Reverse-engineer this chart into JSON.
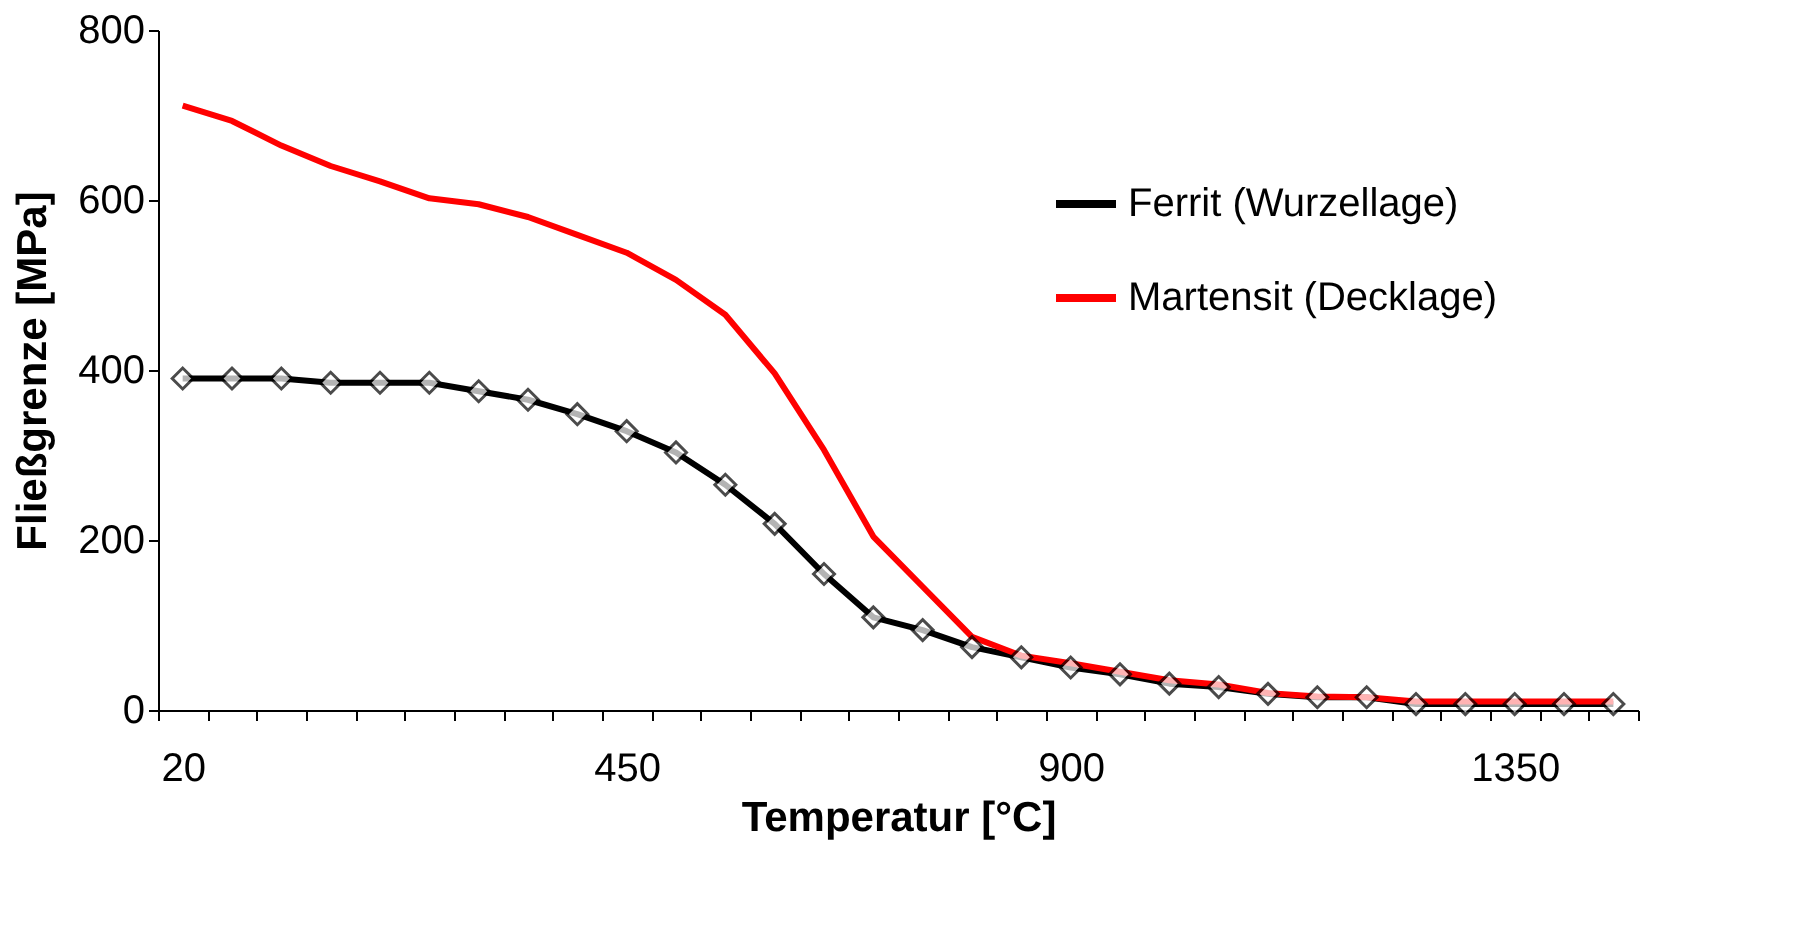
{
  "chart_data": {
    "type": "line",
    "xlabel": "Temperatur [°C]",
    "ylabel": "Fließgrenze [MPa]",
    "categories": [
      "20",
      null,
      null,
      null,
      null,
      null,
      null,
      null,
      null,
      "450",
      null,
      null,
      null,
      null,
      null,
      null,
      null,
      null,
      "900",
      null,
      null,
      null,
      null,
      null,
      null,
      null,
      null,
      "1350",
      null,
      null
    ],
    "ylim": [
      0,
      800
    ],
    "yticks": [
      0,
      200,
      400,
      600,
      800
    ],
    "grid": false,
    "legend": "top right",
    "line_style": "solid",
    "series": [
      {
        "name": "Ferrit (Wurzellage)",
        "color": "#000000",
        "marker": "diamond",
        "values": [
          390,
          390,
          390,
          385,
          385,
          385,
          375,
          365,
          348,
          328,
          303,
          265,
          219,
          160,
          109,
          94,
          74,
          62,
          50,
          42,
          31,
          27,
          19,
          15,
          15,
          7,
          7,
          7,
          7,
          7
        ]
      },
      {
        "name": "Martensit (Decklage)",
        "color": "#ff0000",
        "marker": "none",
        "values": [
          711,
          693,
          664,
          640,
          622,
          602,
          595,
          580,
          559,
          538,
          506,
          465,
          396,
          306,
          204,
          145,
          86,
          64,
          55,
          45,
          35,
          30,
          20,
          16,
          15,
          10,
          10,
          10,
          10,
          10
        ]
      }
    ]
  }
}
